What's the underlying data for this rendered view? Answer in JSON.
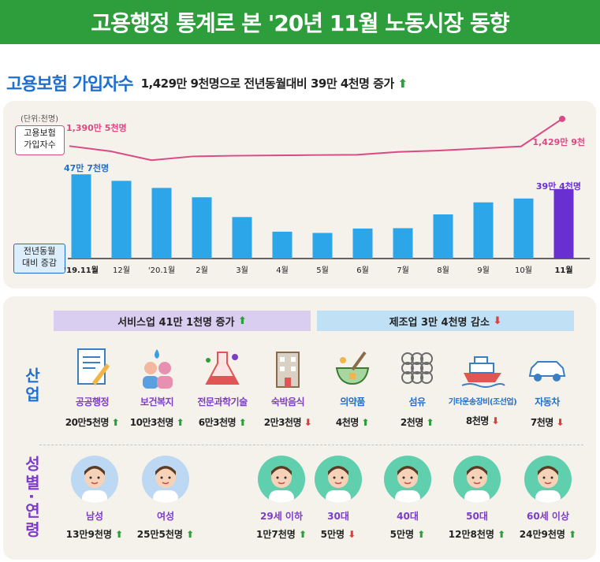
{
  "banner": {
    "title": "고용행정 통계로 본 '20년 11월 노동시장 동향"
  },
  "section": {
    "title": "고용보험 가입자수",
    "summary": "1,429만 9천명으로 전년동월대비 39만 4천명 증가",
    "summary_arrow": "up"
  },
  "unit_label": "(단위:천명)",
  "legend": {
    "line": "고용보험\n가입자수",
    "bar": "전년동월\n대비 증감"
  },
  "chart_data": {
    "type": "bar",
    "categories": [
      "'19.11월",
      "12월",
      "'20.1월",
      "2월",
      "3월",
      "4월",
      "5월",
      "6월",
      "7월",
      "8월",
      "9월",
      "10월",
      "11월"
    ],
    "bar_values": [
      477,
      440,
      400,
      347,
      235,
      152,
      145,
      170,
      172,
      250,
      318,
      340,
      394
    ],
    "line_values": [
      13905,
      13830,
      13700,
      13755,
      13765,
      13770,
      13775,
      13778,
      13820,
      13840,
      13870,
      13900,
      14299
    ],
    "first_bar_label": "47만 7천명",
    "last_bar_label": "39만 4천명",
    "first_line_label": "1,390만 5천명",
    "last_line_label": "1,429만 9천",
    "bar_color": "#2ca6e8",
    "last_bar_color": "#6a2fd1",
    "line_color": "#d94a86"
  },
  "categories_band": {
    "service": "서비스업 41만 1천명 증가",
    "service_arrow": "up",
    "manufacturing": "제조업 3만 4천명 감소",
    "manufacturing_arrow": "down"
  },
  "side_labels": {
    "industry": "산업",
    "gender_age": "성별·연령"
  },
  "industries": [
    {
      "name": "공공행정",
      "value": "20만5천명",
      "arrow": "up",
      "icon": "document-icon",
      "group": "svc"
    },
    {
      "name": "보건복지",
      "value": "10만3천명",
      "arrow": "up",
      "icon": "people-care-icon",
      "group": "svc"
    },
    {
      "name": "전문과학기술",
      "value": "6만3천명",
      "arrow": "up",
      "icon": "flask-icon",
      "group": "svc"
    },
    {
      "name": "숙박음식",
      "value": "2만3천명",
      "arrow": "down",
      "icon": "hotel-icon",
      "group": "svc"
    },
    {
      "name": "의약품",
      "value": "4천명",
      "arrow": "up",
      "icon": "mortar-icon",
      "group": "mfg"
    },
    {
      "name": "섬유",
      "value": "2천명",
      "arrow": "up",
      "icon": "fabric-icon",
      "group": "mfg"
    },
    {
      "name": "기타운송장비(조선업)",
      "value": "8천명",
      "arrow": "down",
      "icon": "ship-icon",
      "group": "mfg"
    },
    {
      "name": "자동차",
      "value": "7천명",
      "arrow": "down",
      "icon": "car-icon",
      "group": "mfg"
    }
  ],
  "people": [
    {
      "name": "남성",
      "value": "13만9천명",
      "arrow": "up",
      "bg": "#bcd8f2"
    },
    {
      "name": "여성",
      "value": "25만5천명",
      "arrow": "up",
      "bg": "#bcd8f2"
    },
    {
      "name": "29세 이하",
      "value": "1만7천명",
      "arrow": "up",
      "bg": "#5fcfae"
    },
    {
      "name": "30대",
      "value": "5만명",
      "arrow": "down",
      "bg": "#5fcfae"
    },
    {
      "name": "40대",
      "value": "5만명",
      "arrow": "up",
      "bg": "#5fcfae"
    },
    {
      "name": "50대",
      "value": "12만8천명",
      "arrow": "up",
      "bg": "#5fcfae"
    },
    {
      "name": "60세 이상",
      "value": "24만9천명",
      "arrow": "up",
      "bg": "#5fcfae"
    }
  ]
}
